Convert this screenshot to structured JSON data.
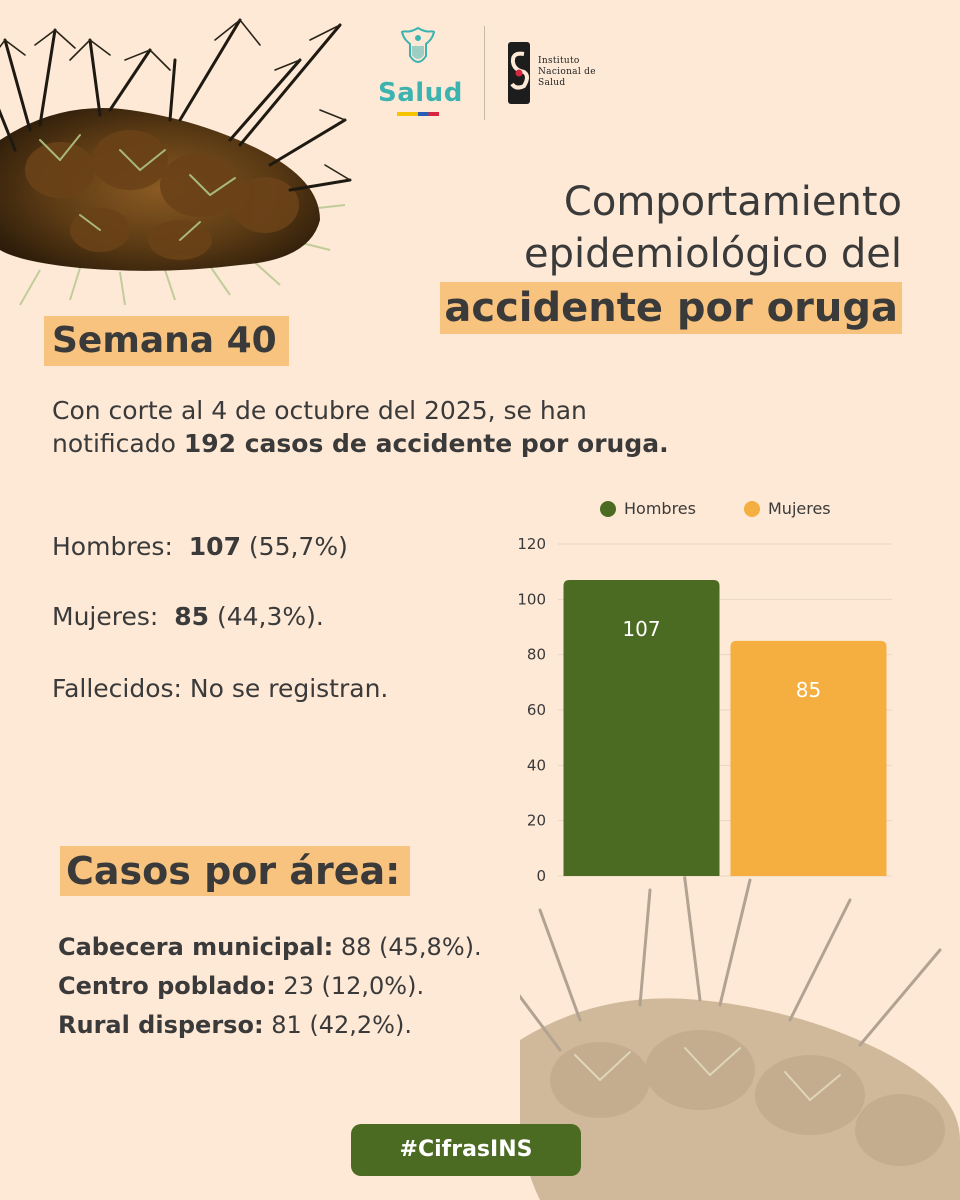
{
  "logos": {
    "salud": "Salud",
    "ins": "Instituto\nNacional de\nSalud"
  },
  "title": {
    "line1": "Comportamiento",
    "line2": "epidemiológico del",
    "line3": "accidente por oruga"
  },
  "week": "Semana 40",
  "intro": {
    "text1": "Con corte al 4 de octubre del 2025, se han",
    "text2": "notificado ",
    "bold": "192 casos de accidente por oruga."
  },
  "stats": {
    "men_label": "Hombres:",
    "men_value": "107",
    "men_pct": "(55,7%)",
    "women_label": "Mujeres:",
    "women_value": "85",
    "women_pct": "(44,3%).",
    "deaths": "Fallecidos: No se registran."
  },
  "area": {
    "title": "Casos por área:",
    "items": [
      {
        "label": "Cabecera municipal:",
        "value": "88 (45,8%)."
      },
      {
        "label": "Centro poblado:",
        "value": "23 (12,0%)."
      },
      {
        "label": "Rural disperso:",
        "value": "81 (42,2%)."
      }
    ]
  },
  "hashtag": "#CifrasINS",
  "colors": {
    "background": "#fde9d6",
    "highlight": "#f7c37f",
    "green": "#4c6b22",
    "orange": "#f5ae40"
  },
  "chart_data": {
    "type": "bar",
    "categories": [
      "Hombres",
      "Mujeres"
    ],
    "series": [
      {
        "name": "Hombres",
        "values": [
          107,
          null
        ],
        "color": "#4c6b22"
      },
      {
        "name": "Mujeres",
        "values": [
          null,
          85
        ],
        "color": "#f5ae40"
      }
    ],
    "values": [
      107,
      85
    ],
    "data_labels": [
      "107",
      "85"
    ],
    "ylim": [
      0,
      120
    ],
    "yticks": [
      0,
      20,
      40,
      60,
      80,
      100,
      120
    ],
    "grid": true,
    "legend": "top"
  }
}
